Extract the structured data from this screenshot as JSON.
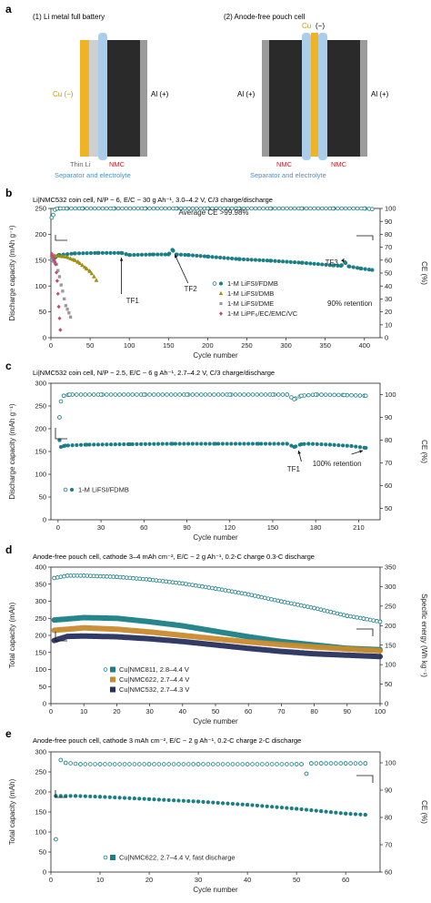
{
  "panel_a": {
    "label": "a",
    "sub1_title": "(1) Li metal full battery",
    "sub2_title": "(2) Anode-free pouch cell",
    "cu_minus": "Cu (−)",
    "al_plus": "Al (+)",
    "thin_li": "Thin Li",
    "nmc": "NMC",
    "sep_label": "Separator and electrolyte",
    "cu_top": "Cu",
    "minus_top": "(−)",
    "colors": {
      "cu": "#f0b323",
      "li": "#cfcfcf",
      "sep": "#a9cdea",
      "nmc": "#2a2a2a",
      "al": "#9b9b9b",
      "red": "#d0202e",
      "blue": "#4a90c8"
    }
  },
  "panel_b": {
    "label": "b",
    "title": "Li|NMC532 coin cell, N/P ~ 6, E/C ~ 30 g Ah⁻¹, 3.0–4.2 V, C/3 charge/discharge",
    "ylabel": "Discharge capacity (mAh g⁻¹)",
    "y2label": "CE (%)",
    "xlabel": "Cycle number",
    "ann": {
      "ce": "Average CE >99.98%",
      "tf1": "TF1",
      "tf2": "TF2",
      "tf3": "TF3",
      "ret": "90% retention"
    },
    "legend": [
      "1-M LiFSI/FDMB",
      "1-M LiFSI/DMB",
      "1-M LiFSI/DME",
      "1-M LiPF₆/EC/EMC/VC"
    ]
  },
  "panel_c": {
    "label": "c",
    "title": "Li|NMC532 coin cell, N/P ~ 2.5, E/C ~ 6 g Ah⁻¹, 2.7–4.2 V, C/3 charge/discharge",
    "ylabel": "Discharge capacity (mAh g⁻¹)",
    "y2label": "CE (%)",
    "xlabel": "Cycle number",
    "ann": {
      "tf1": "TF1",
      "ret": "100% retention"
    },
    "legend": [
      "1-M LiFSI/FDMB"
    ]
  },
  "panel_d": {
    "label": "d",
    "title": "Anode-free pouch cell, cathode 3–4 mAh cm⁻², E/C ~ 2 g Ah⁻¹, 0.2-C charge 0.3-C discharge",
    "ylabel": "Total capacity (mAh)",
    "y2label": "Specific energy (Wh kg⁻¹)",
    "xlabel": "Cycle number",
    "legend": [
      "Cu|NMC811, 2.8–4.4 V",
      "Cu|NMC622, 2.7–4.4 V",
      "Cu|NMC532, 2.7–4.3 V"
    ]
  },
  "panel_e": {
    "label": "e",
    "title": "Anode-free pouch cell, cathode 3 mAh cm⁻², E/C ~ 2 g Ah⁻¹, 0.2-C charge 2-C discharge",
    "ylabel": "Total capacity (mAh)",
    "y2label": "CE (%)",
    "xlabel": "Cycle number",
    "legend": [
      "Cu|NMC622, 2.7–4.4 V, fast discharge"
    ]
  },
  "chart_data": [
    {
      "type": "scatter",
      "panel": "b",
      "xlim": [
        0,
        420
      ],
      "ylim": [
        0,
        250
      ],
      "y2lim": [
        0,
        100
      ],
      "xticks": [
        "0",
        "50",
        "100",
        "150",
        "200",
        "250",
        "300",
        "350",
        "400"
      ],
      "yticks": [
        "0",
        "50",
        "100",
        "150",
        "200",
        "250"
      ],
      "y2ticks": [
        "0",
        "10",
        "20",
        "30",
        "40",
        "50",
        "60",
        "70",
        "80",
        "90",
        "100"
      ],
      "series": [
        {
          "name": "1-M LiFSI/FDMB",
          "color": "#1b7f86",
          "axis": "left",
          "x": [
            1,
            5,
            10,
            30,
            60,
            90,
            100,
            130,
            150,
            155,
            160,
            175,
            200,
            240,
            280,
            320,
            360,
            370,
            375,
            380,
            395,
            410
          ],
          "values": [
            150,
            155,
            160,
            163,
            164,
            164,
            160,
            161,
            161,
            170,
            161,
            160,
            157,
            152,
            149,
            145,
            140,
            139,
            146,
            138,
            134,
            131
          ]
        },
        {
          "name": "1-M LiFSI/FDMB CE",
          "color": "#1b7f86",
          "axis": "right",
          "hollow": true,
          "x": [
            1,
            3,
            5,
            8,
            12,
            20,
            40,
            80,
            120,
            160,
            200,
            240,
            280,
            320,
            360,
            400,
            410
          ],
          "values": [
            93,
            95,
            99,
            99.9,
            100,
            100,
            100,
            100,
            100,
            100,
            100,
            100,
            100,
            100,
            100,
            100,
            99.5
          ]
        },
        {
          "name": "1-M LiFSI/DMB",
          "color": "#9c8f12",
          "axis": "left",
          "x": [
            1,
            5,
            10,
            15,
            20,
            25,
            30,
            35,
            40,
            45,
            50,
            55,
            58
          ],
          "values": [
            160,
            158,
            158,
            157,
            156,
            153,
            150,
            146,
            140,
            134,
            128,
            118,
            111
          ]
        },
        {
          "name": "1-M LiFSI/DME",
          "color": "#9a9a9a",
          "axis": "left",
          "x": [
            1,
            3,
            5,
            7,
            9,
            11,
            13,
            15,
            17,
            19,
            21,
            23,
            25
          ],
          "values": [
            150,
            148,
            146,
            142,
            130,
            118,
            102,
            90,
            75,
            62,
            55,
            48,
            40
          ]
        },
        {
          "name": "1-M LiPF₆/EC/EMC/VC",
          "color": "#c44a77",
          "axis": "left",
          "x": [
            1,
            2,
            4,
            6,
            8,
            10,
            12
          ],
          "values": [
            162,
            158,
            150,
            142,
            110,
            60,
            15
          ]
        }
      ]
    },
    {
      "type": "scatter",
      "panel": "c",
      "xlim": [
        -5,
        225
      ],
      "ylim": [
        0,
        300
      ],
      "y2lim": [
        45,
        105
      ],
      "xticks": [
        "0",
        "30",
        "60",
        "90",
        "120",
        "150",
        "180",
        "210"
      ],
      "yticks": [
        "0",
        "50",
        "100",
        "150",
        "200",
        "250",
        "300"
      ],
      "y2ticks": [
        "50",
        "60",
        "70",
        "80",
        "90",
        "100"
      ],
      "series": [
        {
          "name": "1-M LiFSI/FDMB",
          "color": "#1b7f86",
          "axis": "left",
          "x": [
            1,
            2,
            5,
            20,
            50,
            80,
            110,
            140,
            160,
            165,
            170,
            175,
            190,
            205,
            215
          ],
          "values": [
            175,
            160,
            163,
            165,
            166,
            167,
            167,
            167,
            167,
            160,
            166,
            167,
            165,
            162,
            158
          ]
        },
        {
          "name": "1-M LiFSI/FDMB CE",
          "color": "#1b7f86",
          "axis": "right",
          "hollow": true,
          "x": [
            1,
            2,
            4,
            8,
            30,
            60,
            90,
            120,
            150,
            160,
            165,
            170,
            180,
            200,
            215
          ],
          "values": [
            90,
            97,
            99.5,
            100,
            100,
            100,
            100,
            100,
            100,
            100,
            98,
            99.5,
            100,
            99.8,
            99.5
          ]
        }
      ]
    },
    {
      "type": "line",
      "panel": "d",
      "xlim": [
        0,
        100
      ],
      "ylim": [
        0,
        400
      ],
      "y2lim": [
        0,
        350
      ],
      "xticks": [
        "0",
        "10",
        "20",
        "30",
        "40",
        "50",
        "60",
        "70",
        "80",
        "90",
        "100"
      ],
      "yticks": [
        "0",
        "50",
        "100",
        "150",
        "200",
        "250",
        "300",
        "350",
        "400"
      ],
      "y2ticks": [
        "0",
        "50",
        "100",
        "150",
        "200",
        "250",
        "300",
        "350"
      ],
      "series": [
        {
          "name": "Cu|NMC811, 2.8–4.4 V",
          "color": "#1b7f86",
          "axis": "left",
          "x": [
            1,
            10,
            20,
            30,
            40,
            50,
            60,
            70,
            80,
            90,
            95,
            100
          ],
          "values": [
            245,
            252,
            250,
            240,
            228,
            212,
            196,
            182,
            172,
            162,
            160,
            158
          ]
        },
        {
          "name": "Cu|NMC811 specific energy",
          "color": "#1b7f86",
          "axis": "right",
          "hollow": true,
          "x": [
            1,
            5,
            10,
            20,
            30,
            40,
            50,
            60,
            70,
            80,
            85,
            90,
            95,
            100
          ],
          "values": [
            322,
            328,
            328,
            325,
            318,
            308,
            295,
            280,
            262,
            245,
            235,
            225,
            218,
            210
          ]
        },
        {
          "name": "Cu|NMC622, 2.7–4.4 V",
          "color": "#c98b2d",
          "axis": "left",
          "x": [
            1,
            10,
            20,
            30,
            40,
            50,
            60,
            70,
            80,
            90,
            100
          ],
          "values": [
            215,
            222,
            218,
            210,
            200,
            190,
            181,
            173,
            166,
            160,
            155
          ]
        },
        {
          "name": "Cu|NMC532, 2.7–4.3 V",
          "color": "#27305e",
          "axis": "left",
          "x": [
            1,
            5,
            10,
            20,
            30,
            40,
            50,
            60,
            70,
            80,
            90,
            100
          ],
          "values": [
            185,
            197,
            198,
            196,
            190,
            182,
            172,
            162,
            153,
            146,
            142,
            138
          ]
        }
      ]
    },
    {
      "type": "scatter",
      "panel": "e",
      "xlim": [
        0,
        67
      ],
      "ylim": [
        0,
        300
      ],
      "y2lim": [
        60,
        104
      ],
      "xticks": [
        "0",
        "10",
        "20",
        "30",
        "40",
        "50",
        "60"
      ],
      "yticks": [
        "0",
        "50",
        "100",
        "150",
        "200",
        "250",
        "300"
      ],
      "y2ticks": [
        "60",
        "70",
        "80",
        "90",
        "100"
      ],
      "series": [
        {
          "name": "Cu|NMC622, 2.7–4.4 V, fast discharge",
          "color": "#1b7f86",
          "axis": "left",
          "x": [
            1,
            5,
            10,
            20,
            30,
            40,
            50,
            55,
            60,
            64
          ],
          "values": [
            190,
            190,
            188,
            182,
            176,
            168,
            158,
            152,
            146,
            143
          ]
        },
        {
          "name": "Cu|NMC622 CE",
          "color": "#1b7f86",
          "axis": "right",
          "hollow": true,
          "x": [
            1,
            2,
            3,
            6,
            10,
            20,
            30,
            40,
            50,
            51,
            52,
            53,
            55,
            60,
            64
          ],
          "values": [
            72,
            101,
            100,
            99.5,
            99.5,
            99.5,
            99.5,
            99.5,
            99.5,
            99.5,
            96,
            99.8,
            99.8,
            99.8,
            99.8
          ]
        }
      ]
    }
  ]
}
